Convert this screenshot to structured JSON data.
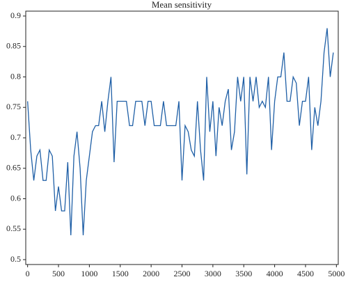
{
  "chart_data": {
    "type": "line",
    "title": "Mean sensitivity",
    "x": [
      0,
      50,
      100,
      150,
      200,
      250,
      300,
      350,
      400,
      450,
      500,
      550,
      600,
      650,
      700,
      750,
      800,
      850,
      900,
      950,
      1000,
      1050,
      1100,
      1150,
      1200,
      1250,
      1300,
      1350,
      1400,
      1450,
      1500,
      1550,
      1600,
      1650,
      1700,
      1750,
      1800,
      1850,
      1900,
      1950,
      2000,
      2050,
      2100,
      2150,
      2200,
      2250,
      2300,
      2350,
      2400,
      2450,
      2500,
      2550,
      2600,
      2650,
      2700,
      2750,
      2800,
      2850,
      2900,
      2950,
      3000,
      3050,
      3100,
      3150,
      3200,
      3250,
      3300,
      3350,
      3400,
      3450,
      3500,
      3550,
      3600,
      3650,
      3700,
      3750,
      3800,
      3850,
      3900,
      3950,
      4000,
      4050,
      4100,
      4150,
      4200,
      4250,
      4300,
      4350,
      4400,
      4450,
      4500,
      4550,
      4600,
      4650,
      4700,
      4750,
      4800,
      4850,
      4900,
      4950
    ],
    "series": [
      {
        "color": "#1f5fa6",
        "values": [
          0.76,
          0.68,
          0.63,
          0.67,
          0.68,
          0.63,
          0.63,
          0.68,
          0.67,
          0.58,
          0.62,
          0.58,
          0.58,
          0.66,
          0.54,
          0.67,
          0.71,
          0.65,
          0.54,
          0.63,
          0.67,
          0.71,
          0.72,
          0.72,
          0.76,
          0.71,
          0.76,
          0.8,
          0.66,
          0.76,
          0.76,
          0.76,
          0.76,
          0.72,
          0.72,
          0.76,
          0.76,
          0.76,
          0.72,
          0.76,
          0.76,
          0.72,
          0.72,
          0.72,
          0.76,
          0.72,
          0.72,
          0.72,
          0.72,
          0.76,
          0.63,
          0.72,
          0.71,
          0.68,
          0.67,
          0.76,
          0.68,
          0.63,
          0.8,
          0.71,
          0.76,
          0.67,
          0.75,
          0.72,
          0.76,
          0.78,
          0.68,
          0.71,
          0.8,
          0.76,
          0.8,
          0.64,
          0.8,
          0.76,
          0.8,
          0.75,
          0.76,
          0.75,
          0.8,
          0.68,
          0.76,
          0.8,
          0.8,
          0.84,
          0.76,
          0.76,
          0.8,
          0.79,
          0.72,
          0.76,
          0.76,
          0.8,
          0.68,
          0.75,
          0.72,
          0.76,
          0.84,
          0.88,
          0.8,
          0.84
        ]
      }
    ],
    "xlim": [
      -30,
      5030
    ],
    "xticks": [
      0,
      500,
      1000,
      1500,
      2000,
      2500,
      3000,
      3500,
      4000,
      4500,
      5000
    ],
    "ylim": [
      0.492,
      0.908
    ],
    "yticks": [
      0.5,
      0.55,
      0.6,
      0.65,
      0.7,
      0.75,
      0.8,
      0.85,
      0.9
    ]
  }
}
